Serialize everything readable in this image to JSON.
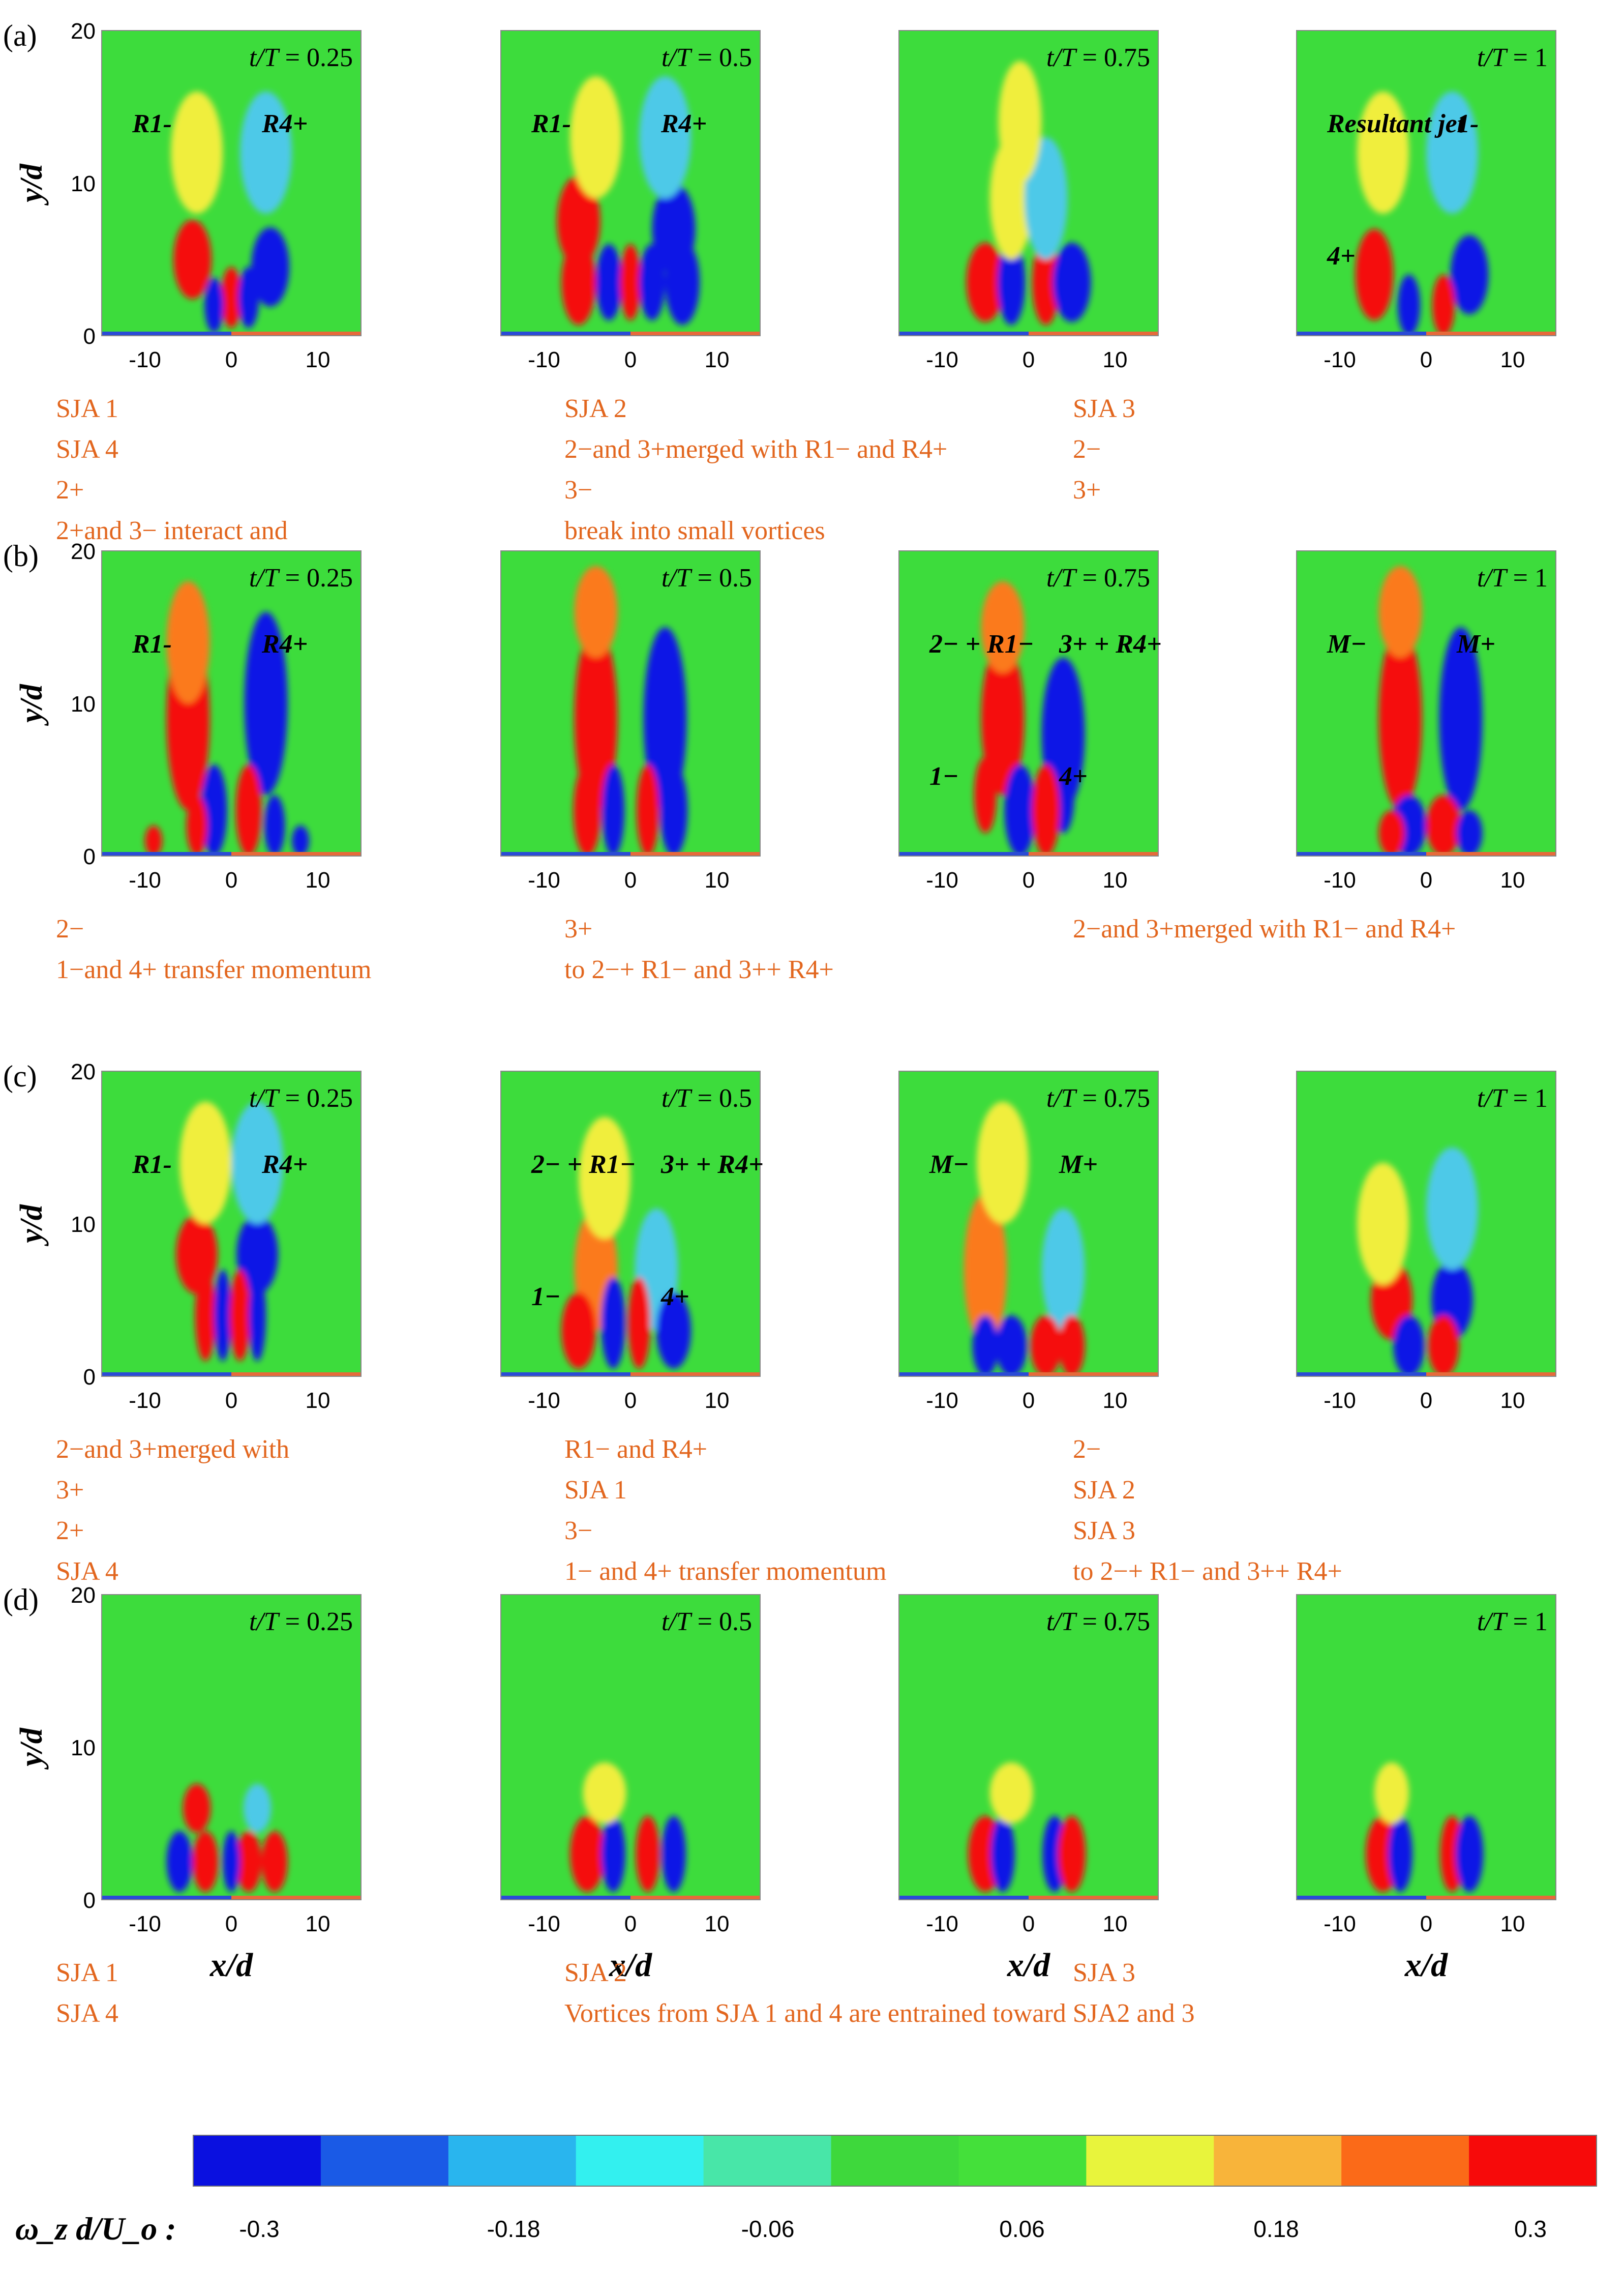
{
  "chart_data": {
    "type": "heatmap",
    "quantity": "ω_z d / U_o",
    "colormap": [
      "#0a10e0",
      "#1a5ae6",
      "#29b5ee",
      "#33f0ef",
      "#48e6a8",
      "#3ed83c",
      "#44e03a",
      "#e8f43c",
      "#f8b43a",
      "#fb6a18",
      "#f70a0a"
    ],
    "rows": [
      {
        "label": "(a)",
        "panels": [
          {
            "time": "0.25",
            "labels": [
              "R1-",
              "R4+"
            ]
          },
          {
            "time": "0.5",
            "labels": [
              "R1-",
              "R4+"
            ]
          },
          {
            "time": "0.75",
            "labels": []
          },
          {
            "time": "1",
            "labels": [
              "Resultant jet",
              "1-",
              "4+"
            ]
          }
        ],
        "annotations": [
          "SJA 1",
          "SJA 2",
          "SJA 3",
          "SJA 4",
          "2−and 3+merged with R1− and R4+",
          "2−",
          "2+",
          "3−",
          "3+",
          "2+and 3−  interact and",
          "break into small vortices"
        ]
      },
      {
        "label": "(b)",
        "panels": [
          {
            "time": "0.25",
            "labels": [
              "R1-",
              "R4+"
            ]
          },
          {
            "time": "0.5",
            "labels": []
          },
          {
            "time": "0.75",
            "labels": [
              "2− + R1−",
              "3+ + R4+",
              "1−",
              "4+"
            ]
          },
          {
            "time": "1",
            "labels": [
              "M−",
              "M+"
            ]
          }
        ],
        "annotations": [
          "2−",
          "3+",
          "2−and 3+merged with R1− and R4+",
          "1−and 4+ transfer momentum",
          "to  2−+ R1− and 3++ R4+"
        ]
      },
      {
        "label": "(c)",
        "panels": [
          {
            "time": "0.25",
            "labels": [
              "R1-",
              "R4+"
            ]
          },
          {
            "time": "0.5",
            "labels": [
              "2− + R1−",
              "3+ + R4+",
              "1−",
              "4+"
            ]
          },
          {
            "time": "0.75",
            "labels": [
              "M−",
              "M+"
            ]
          },
          {
            "time": "1",
            "labels": []
          }
        ],
        "annotations": [
          "2−and 3+merged with",
          "R1− and R4+",
          "2−",
          "3+",
          "SJA 1",
          "SJA 2",
          "2+",
          "3−",
          "SJA 3",
          "SJA 4",
          "1− and 4+ transfer momentum",
          "to  2−+ R1− and 3++ R4+"
        ]
      },
      {
        "label": "(d)",
        "panels": [
          {
            "time": "0.25",
            "labels": []
          },
          {
            "time": "0.5",
            "labels": []
          },
          {
            "time": "0.75",
            "labels": []
          },
          {
            "time": "1",
            "labels": []
          }
        ],
        "annotations": [
          "SJA 1",
          "SJA 2",
          "SJA 3",
          "SJA 4",
          "Vortices from SJA 1 and 4 are entrained toward SJA2 and 3"
        ]
      }
    ],
    "x_ticks": [
      "-10",
      "0",
      "10"
    ],
    "y_ticks": [
      "0",
      "10",
      "20"
    ],
    "xlim": [
      -15,
      15
    ],
    "ylim": [
      0,
      20
    ],
    "xlabel": "x/d",
    "ylabel": "y/d",
    "time_label": "t/T",
    "colorbar": {
      "label": "ω_z d/U_o :",
      "ticks": [
        "-0.3",
        "-0.18",
        "-0.06",
        "0.06",
        "0.18",
        "0.3"
      ],
      "range": [
        -0.3,
        0.3
      ]
    }
  }
}
